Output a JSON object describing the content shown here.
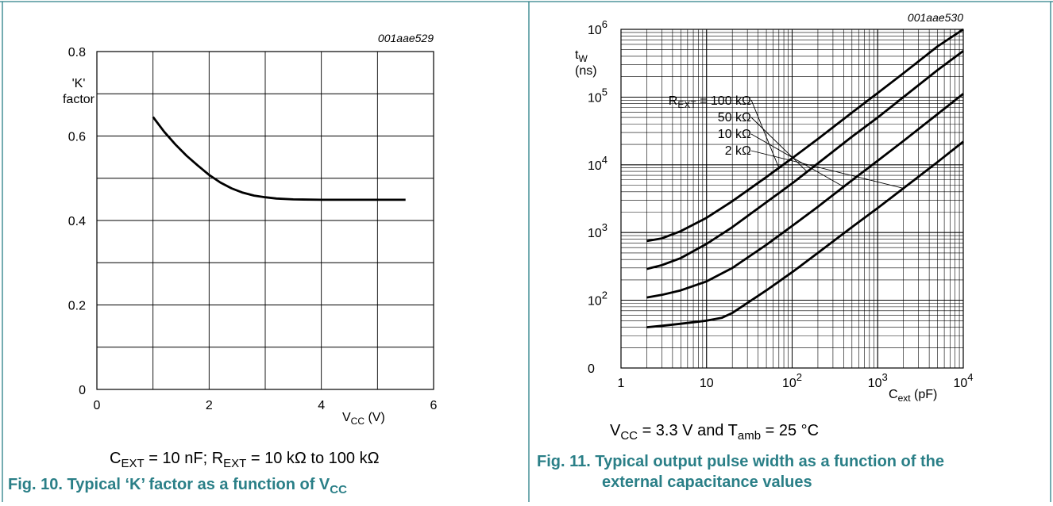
{
  "colors": {
    "frame": "#2a7f87",
    "caption": "#2a7f87",
    "ink": "#000000"
  },
  "fig10": {
    "id_code": "001aae529",
    "ylabel_line1": "'K'",
    "ylabel_line2": "factor",
    "xlabel_main": "V",
    "xlabel_sub": "CC",
    "xlabel_unit": " (V)",
    "cond": {
      "c": "C",
      "c_sub": "EXT",
      "c_rest": " = 10 nF; R",
      "r_sub": "EXT",
      "r_rest": " = 10 kΩ to 100 kΩ"
    },
    "caption": {
      "prefix": "Fig. 10.  Typical ‘K’ factor as a function of V",
      "sub": "CC"
    }
  },
  "fig11": {
    "id_code": "001aae530",
    "ylabel_line1": "t",
    "ylabel_sub": "W",
    "ylabel_line2": "(ns)",
    "xlabel_main": "C",
    "xlabel_sub": "ext",
    "xlabel_unit": " (pF)",
    "series_labels": [
      {
        "pre": "R",
        "sub": "EXT",
        "post": " = 100 kΩ"
      },
      {
        "pre": "",
        "sub": "",
        "post": "50 kΩ"
      },
      {
        "pre": "",
        "sub": "",
        "post": "10 kΩ"
      },
      {
        "pre": "",
        "sub": "",
        "post": "2 kΩ"
      }
    ],
    "cond": {
      "v": "V",
      "v_sub": "CC",
      "v_rest": " = 3.3 V and T",
      "t_sub": "amb",
      "t_rest": " = 25 °C"
    },
    "caption_line1": "Fig. 11.   Typical output pulse width as a function of the",
    "caption_line2": "external capacitance values"
  },
  "chart_data": [
    {
      "type": "line",
      "title": "",
      "xlabel": "VCC (V)",
      "ylabel": "'K' factor",
      "xlim": [
        0,
        6
      ],
      "ylim": [
        0,
        0.8
      ],
      "xticks": [
        "0",
        "2",
        "4",
        "6"
      ],
      "yticks": [
        "0",
        "0.2",
        "0.4",
        "0.6",
        "0.8"
      ],
      "grid": true,
      "series": [
        {
          "x": [
            1.0,
            1.2,
            1.4,
            1.6,
            1.8,
            2.0,
            2.2,
            2.4,
            2.6,
            2.8,
            3.0,
            3.2,
            3.5,
            4.0,
            4.5,
            5.0,
            5.5
          ],
          "y": [
            0.645,
            0.61,
            0.58,
            0.553,
            0.53,
            0.508,
            0.49,
            0.476,
            0.466,
            0.459,
            0.455,
            0.452,
            0.45,
            0.449,
            0.449,
            0.449,
            0.449
          ]
        }
      ]
    },
    {
      "type": "line",
      "title": "",
      "xlabel": "Cext (pF)",
      "ylabel": "tW (ns)",
      "xscale": "log",
      "yscale": "log",
      "xlim": [
        1,
        10000
      ],
      "ylim": [
        10,
        1000000
      ],
      "xticks": [
        "1",
        "10",
        "10^2",
        "10^3",
        "10^4"
      ],
      "yticks": [
        "0",
        "10^2",
        "10^3",
        "10^4",
        "10^5",
        "10^6"
      ],
      "grid": true,
      "series": [
        {
          "name": "REXT = 100 kΩ",
          "x": [
            2,
            3,
            5,
            10,
            20,
            50,
            100,
            200,
            500,
            1000,
            2000,
            5000,
            10000
          ],
          "y": [
            750,
            820,
            1050,
            1650,
            2900,
            6600,
            12500,
            24000,
            59000,
            115000,
            225000,
            560000,
            1100000
          ]
        },
        {
          "name": "50 kΩ",
          "x": [
            2,
            3,
            5,
            10,
            20,
            50,
            100,
            200,
            500,
            1000,
            2000,
            5000,
            10000
          ],
          "y": [
            290,
            330,
            420,
            680,
            1200,
            2800,
            5300,
            10500,
            26000,
            50000,
            100000,
            250000,
            480000
          ]
        },
        {
          "name": "10 kΩ",
          "x": [
            2,
            3,
            5,
            10,
            20,
            50,
            100,
            200,
            500,
            1000,
            2000,
            5000,
            10000
          ],
          "y": [
            110,
            120,
            140,
            190,
            300,
            660,
            1250,
            2400,
            5900,
            11500,
            22500,
            56000,
            112000
          ]
        },
        {
          "name": "2 kΩ",
          "x": [
            2,
            3,
            5,
            10,
            15,
            20,
            50,
            100,
            200,
            500,
            1000,
            2000,
            5000,
            10000
          ],
          "y": [
            40,
            42,
            45,
            50,
            55,
            65,
            140,
            260,
            500,
            1200,
            2300,
            4500,
            11000,
            22000
          ]
        }
      ]
    }
  ]
}
